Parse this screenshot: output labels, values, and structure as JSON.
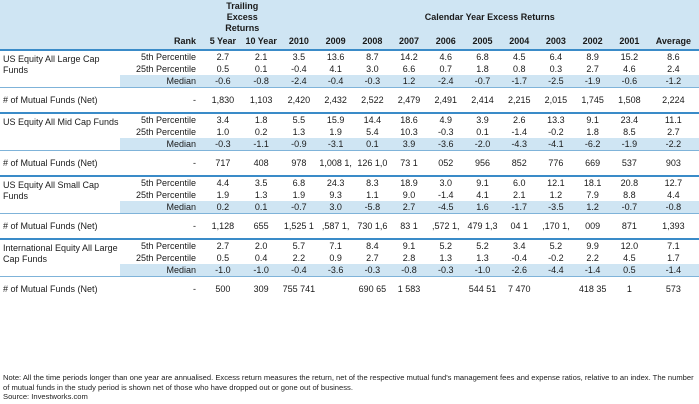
{
  "header": {
    "trailing_title": "Trailing Excess Returns",
    "calendar_title": "Calendar Year Excess Returns",
    "rank_label": "Rank",
    "columns": [
      "5 Year",
      "10 Year",
      "2010",
      "2009",
      "2008",
      "2007",
      "2006",
      "2005",
      "2004",
      "2003",
      "2002",
      "2001",
      "Average"
    ]
  },
  "groups": [
    {
      "name": "US Equity All Large Cap Funds",
      "rows": [
        {
          "label": "5th Percentile",
          "values": [
            "2.7",
            "2.1",
            "3.5",
            "13.6",
            "8.7",
            "14.2",
            "4.6",
            "6.8",
            "4.5",
            "6.4",
            "8.9",
            "15.2",
            "8.6"
          ]
        },
        {
          "label": "25th Percentile",
          "values": [
            "0.5",
            "0.1",
            "-0.4",
            "4.1",
            "3.0",
            "6.6",
            "0.7",
            "1.8",
            "0.8",
            "0.3",
            "2.7",
            "4.6",
            "2.4"
          ]
        },
        {
          "label": "Median",
          "values": [
            "-0.6",
            "-0.8",
            "-2.4",
            "-0.4",
            "-0.3",
            "1.2",
            "-2.4",
            "-0.7",
            "-1.7",
            "-2.5",
            "-1.9",
            "-0.6",
            "-1.2"
          ]
        }
      ],
      "count_label": "# of Mutual Funds (Net)",
      "count_rank": "-",
      "counts": [
        "1,830",
        "1,103",
        "2,420",
        "2,432",
        "2,522",
        "2,479",
        "2,491",
        "2,414",
        "2,215",
        "2,015",
        "1,745",
        "1,508",
        "2,224"
      ]
    },
    {
      "name": "US Equity All Mid Cap Funds",
      "rows": [
        {
          "label": "5th Percentile",
          "values": [
            "3.4",
            "1.8",
            "5.5",
            "15.9",
            "14.4",
            "18.6",
            "4.9",
            "3.9",
            "2.6",
            "13.3",
            "9.1",
            "23.4",
            "11.1"
          ]
        },
        {
          "label": "25th Percentile",
          "values": [
            "1.0",
            "0.2",
            "1.3",
            "1.9",
            "5.4",
            "10.3",
            "-0.3",
            "0.1",
            "-1.4",
            "-0.2",
            "1.8",
            "8.5",
            "2.7"
          ]
        },
        {
          "label": "Median",
          "values": [
            "-0.3",
            "-1.1",
            "-0.9",
            "-3.1",
            "0.1",
            "3.9",
            "-3.6",
            "-2.0",
            "-4.3",
            "-4.1",
            "-6.2",
            "-1.9",
            "-2.2"
          ]
        }
      ],
      "count_label": "# of Mutual Funds (Net)",
      "count_rank": "-",
      "counts": [
        "717",
        "408",
        "978",
        "1,008 1,",
        "126 1,0",
        "73 1",
        "052",
        "956",
        "852",
        "776",
        "669",
        "537",
        "903"
      ]
    },
    {
      "name": "US Equity All Small Cap Funds",
      "rows": [
        {
          "label": "5th Percentile",
          "values": [
            "4.4",
            "3.5",
            "6.8",
            "24.3",
            "8.3",
            "18.9",
            "3.0",
            "9.1",
            "6.0",
            "12.1",
            "18.1",
            "20.8",
            "12.7"
          ]
        },
        {
          "label": "25th Percentile",
          "values": [
            "1.9",
            "1.3",
            "1.9",
            "9.3",
            "1.1",
            "9.0",
            "-1.4",
            "4.1",
            "2.1",
            "1.2",
            "7.9",
            "8.8",
            "4.4"
          ]
        },
        {
          "label": "Median",
          "values": [
            "0.2",
            "0.1",
            "-0.7",
            "3.0",
            "-5.8",
            "2.7",
            "-4.5",
            "1.6",
            "-1.7",
            "-3.5",
            "1.2",
            "-0.7",
            "-0.8"
          ]
        }
      ],
      "count_label": "# of Mutual Funds (Net)",
      "count_rank": "-",
      "counts": [
        "1,128",
        "655",
        "1,525 1",
        ",587 1,",
        "730 1,6",
        "83 1",
        ",572 1,",
        "479 1,3",
        "04 1",
        ",170 1,",
        "009",
        "871",
        "1,393"
      ]
    },
    {
      "name": "International Equity All Large Cap Funds",
      "rows": [
        {
          "label": "5th Percentile",
          "values": [
            "2.7",
            "2.0",
            "5.7",
            "7.1",
            "8.4",
            "9.1",
            "5.2",
            "5.2",
            "3.4",
            "5.2",
            "9.9",
            "12.0",
            "7.1"
          ]
        },
        {
          "label": "25th Percentile",
          "values": [
            "0.5",
            "0.4",
            "2.2",
            "0.9",
            "2.7",
            "2.8",
            "1.3",
            "1.3",
            "-0.4",
            "-0.2",
            "2.2",
            "4.5",
            "1.7"
          ]
        },
        {
          "label": "Median",
          "values": [
            "-1.0",
            "-1.0",
            "-0.4",
            "-3.6",
            "-0.3",
            "-0.8",
            "-0.3",
            "-1.0",
            "-2.6",
            "-4.4",
            "-1.4",
            "0.5",
            "-1.4"
          ]
        }
      ],
      "count_label": "# of Mutual Funds (Net)",
      "count_rank": "-",
      "counts": [
        "500",
        "309",
        "755 741",
        "",
        "690 65",
        "1 583",
        "",
        "544 51",
        "7 470",
        "",
        "418 35",
        "1",
        "573"
      ]
    }
  ],
  "note": "Note: All the time periods longer than one year are annualised. Excess return measures the return, net of the respective mutual fund's management fees and expense ratios, relative to an index. The number of mutual funds in the study period is shown net of those who have dropped out or gone out of business.",
  "source": "Source: Investworks.com"
}
